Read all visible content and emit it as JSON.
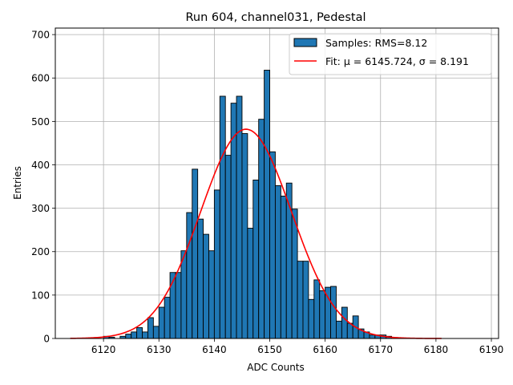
{
  "chart_data": {
    "type": "bar",
    "title": "Run 604, channel031, Pedestal",
    "xlabel": "ADC Counts",
    "ylabel": "Entries",
    "xlim": [
      6111.3,
      6191.3
    ],
    "ylim": [
      0,
      715
    ],
    "grid": true,
    "legend_position": "top-right",
    "x_ticks": [
      6120,
      6130,
      6140,
      6150,
      6160,
      6170,
      6180,
      6190
    ],
    "y_ticks": [
      0,
      100,
      200,
      300,
      400,
      500,
      600,
      700
    ],
    "bin_width": 1,
    "bin_start": 6114,
    "counts": [
      0,
      0,
      0,
      0,
      0,
      0,
      5,
      3,
      0,
      5,
      10,
      15,
      25,
      15,
      48,
      28,
      72,
      95,
      152,
      152,
      202,
      290,
      390,
      275,
      240,
      202,
      342,
      558,
      422,
      542,
      558,
      472,
      254,
      365,
      505,
      618,
      430,
      352,
      328,
      358,
      298,
      178,
      178,
      90,
      135,
      110,
      118,
      120,
      40,
      72,
      35,
      52,
      22,
      15,
      8,
      8,
      8,
      5,
      0,
      0,
      0,
      0,
      0,
      0,
      0,
      0,
      0,
      0,
      0
    ],
    "fit": {
      "mu": 6145.724,
      "sigma": 8.191,
      "amplitude": 482,
      "x_range": [
        6114,
        6181
      ]
    },
    "bar_color": "#1f77b4",
    "fit_color": "#ff0000",
    "legend": [
      {
        "label": "Samples: RMS=8.12",
        "kind": "patch",
        "color": "#1f77b4"
      },
      {
        "label": "Fit: μ = 6145.724, σ = 8.191",
        "kind": "line",
        "color": "#ff0000"
      }
    ]
  }
}
